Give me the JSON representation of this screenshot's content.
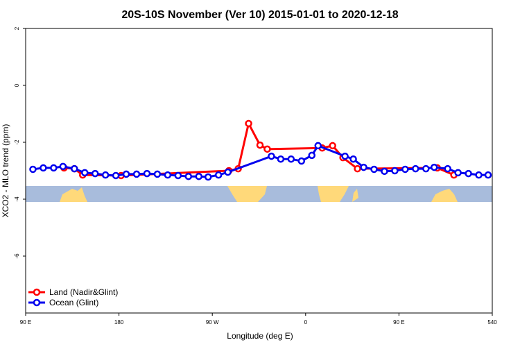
{
  "chart_data": {
    "type": "line",
    "title": "20S-10S November (Ver 10)   2015-01-01 to 2020-12-18",
    "xlabel": "Longitude (deg E)",
    "ylabel": "XCO2 - MLO trend (ppm)",
    "xlim": [
      90,
      540
    ],
    "ylim": [
      -8,
      2
    ],
    "xticks": [
      {
        "value": 90,
        "label": "90 E"
      },
      180,
      {
        "value": 270,
        "label": "90 W"
      },
      {
        "value": 360,
        "label": "0"
      },
      {
        "value": 450,
        "label": "90 E"
      },
      540
    ],
    "yticks": [
      2,
      0,
      -2,
      -4,
      -6
    ],
    "legend": "bottom-left",
    "series": [
      {
        "name": "Land (Nadir&Glint)",
        "color": "#ff0000",
        "x": [
          127,
          137,
          145,
          182,
          286,
          295,
          305,
          316,
          323,
          376,
          386,
          396,
          410,
          487,
          503
        ],
        "values": [
          -2.9,
          -2.93,
          -3.15,
          -3.17,
          -3.0,
          -2.93,
          -1.34,
          -2.1,
          -2.24,
          -2.2,
          -2.12,
          -2.54,
          -2.93,
          -2.9,
          -3.15
        ]
      },
      {
        "name": "Ocean (Glint)",
        "color": "#0000ee",
        "x": [
          97,
          107,
          117,
          126,
          137,
          147,
          157,
          167,
          177,
          187,
          197,
          207,
          217,
          227,
          237,
          247,
          257,
          266,
          276,
          285,
          327,
          336,
          346,
          356,
          366,
          372,
          398,
          406,
          416,
          426,
          436,
          446,
          456,
          466,
          476,
          484,
          497,
          507,
          517,
          527,
          536
        ],
        "values": [
          -2.95,
          -2.9,
          -2.9,
          -2.85,
          -2.93,
          -3.07,
          -3.1,
          -3.15,
          -3.17,
          -3.12,
          -3.12,
          -3.1,
          -3.12,
          -3.15,
          -3.17,
          -3.2,
          -3.2,
          -3.22,
          -3.15,
          -3.05,
          -2.49,
          -2.59,
          -2.59,
          -2.66,
          -2.46,
          -2.12,
          -2.49,
          -2.59,
          -2.88,
          -2.95,
          -3.02,
          -3.0,
          -2.95,
          -2.93,
          -2.93,
          -2.88,
          -2.93,
          -3.07,
          -3.1,
          -3.15,
          -3.15
        ]
      }
    ]
  }
}
